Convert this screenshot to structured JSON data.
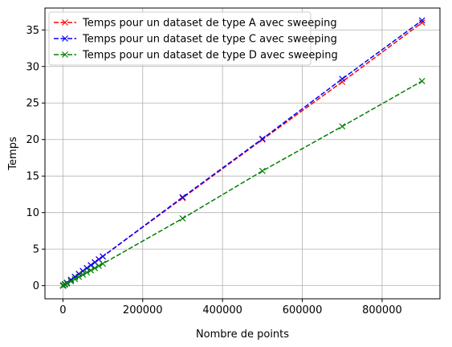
{
  "chart_data": {
    "type": "line",
    "xlabel": "Nombre de points",
    "ylabel": "Temps",
    "xlim": [
      -45000,
      945000
    ],
    "ylim": [
      -1.8,
      38
    ],
    "xticks": [
      0,
      200000,
      400000,
      600000,
      800000
    ],
    "xtick_labels": [
      "0",
      "200000",
      "400000",
      "600000",
      "800000"
    ],
    "yticks": [
      0,
      5,
      10,
      15,
      20,
      25,
      30,
      35
    ],
    "ytick_labels": [
      "0",
      "5",
      "10",
      "15",
      "20",
      "25",
      "30",
      "35"
    ],
    "grid": true,
    "legend_position": "top-left",
    "marker": "x",
    "line_style": "dashed",
    "series": [
      {
        "name": "Temps pour un dataset de type A avec sweeping",
        "color": "#ff0000",
        "x": [
          100,
          1000,
          5000,
          10000,
          20000,
          30000,
          40000,
          50000,
          60000,
          70000,
          80000,
          90000,
          100000,
          300000,
          500000,
          700000,
          900000
        ],
        "y": [
          0.004,
          0.04,
          0.2,
          0.4,
          0.8,
          1.2,
          1.6,
          2.0,
          2.4,
          2.8,
          3.2,
          3.6,
          4.0,
          12.0,
          20.0,
          27.9,
          36.0
        ]
      },
      {
        "name": "Temps pour un dataset de type C avec sweeping",
        "color": "#0000ff",
        "x": [
          100,
          1000,
          5000,
          10000,
          20000,
          30000,
          40000,
          50000,
          60000,
          70000,
          80000,
          90000,
          100000,
          300000,
          500000,
          700000,
          900000
        ],
        "y": [
          0.004,
          0.04,
          0.2,
          0.4,
          0.8,
          1.2,
          1.6,
          2.0,
          2.4,
          2.8,
          3.2,
          3.6,
          4.0,
          12.1,
          20.1,
          28.3,
          36.3
        ]
      },
      {
        "name": "Temps pour un dataset de type D avec sweeping",
        "color": "#008000",
        "x": [
          100,
          1000,
          5000,
          10000,
          20000,
          30000,
          40000,
          50000,
          60000,
          70000,
          80000,
          90000,
          100000,
          300000,
          500000,
          700000,
          900000
        ],
        "y": [
          0.003,
          0.03,
          0.15,
          0.3,
          0.6,
          0.9,
          1.2,
          1.5,
          1.8,
          2.1,
          2.4,
          2.7,
          3.0,
          9.2,
          15.7,
          21.8,
          28.0
        ]
      }
    ]
  }
}
